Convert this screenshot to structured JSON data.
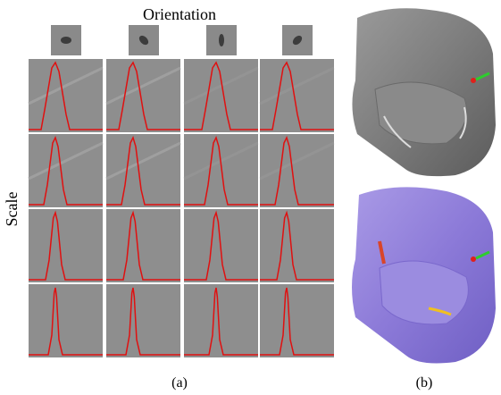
{
  "title": "Orientation",
  "y_label": "Scale",
  "captions": [
    "(a)",
    "(b)"
  ]
}
